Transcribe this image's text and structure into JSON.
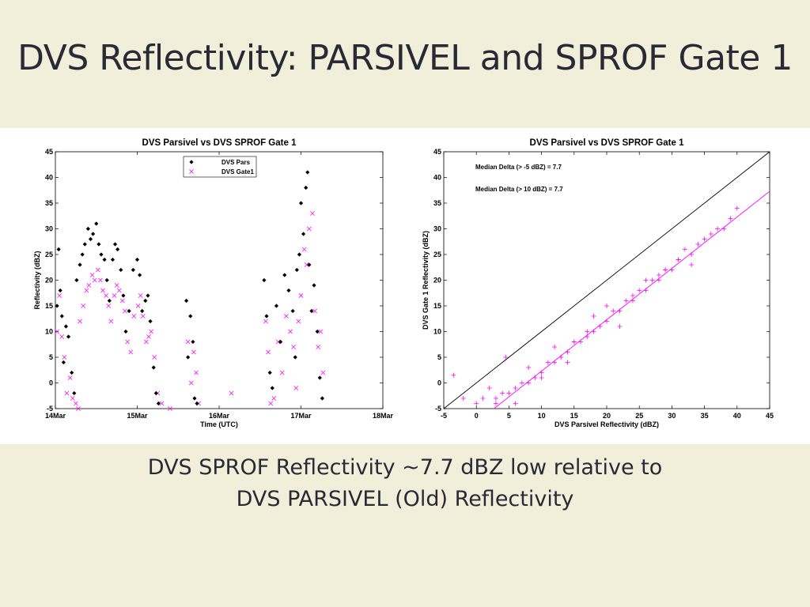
{
  "slide": {
    "title": "DVS Reflectivity: PARSIVEL and SPROF Gate 1",
    "caption_line1": "DVS SPROF Reflectivity ~7.7 dBZ low relative to",
    "caption_line2": "DVS PARSIVEL (Old) Reflectivity"
  },
  "colors": {
    "background": "#f1efda",
    "pars": "#000000",
    "gate1": "#ff00ff"
  },
  "chart_data": [
    {
      "type": "scatter",
      "title": "DVS Parsivel vs DVS SPROF Gate 1",
      "xlabel": "Time (UTC)",
      "ylabel": "Reflectivity (dBZ)",
      "xlim": [
        0,
        4
      ],
      "ylim": [
        -5,
        45
      ],
      "x_tick_values": [
        0,
        1,
        2,
        3,
        4
      ],
      "x_tick_labels": [
        "14Mar",
        "15Mar",
        "16Mar",
        "17Mar",
        "18Mar"
      ],
      "y_ticks": [
        -5,
        0,
        5,
        10,
        15,
        20,
        25,
        30,
        35,
        40,
        45
      ],
      "legend": [
        "DVS Pars",
        "DVS Gate1"
      ],
      "legend_position": "top-center",
      "series": [
        {
          "name": "DVS Pars",
          "marker": "diamond",
          "x": [
            0.02,
            0.04,
            0.06,
            0.08,
            0.1,
            0.13,
            0.16,
            0.2,
            0.23,
            0.26,
            0.3,
            0.33,
            0.36,
            0.4,
            0.43,
            0.46,
            0.5,
            0.53,
            0.56,
            0.6,
            0.63,
            0.66,
            0.7,
            0.73,
            0.76,
            0.8,
            0.83,
            0.86,
            0.9,
            0.95,
            1.0,
            1.03,
            1.06,
            1.1,
            1.13,
            1.16,
            1.2,
            1.23,
            1.26,
            1.6,
            1.62,
            1.65,
            1.68,
            1.7,
            1.73,
            2.55,
            2.58,
            2.62,
            2.65,
            2.7,
            2.75,
            2.8,
            2.85,
            2.9,
            2.93,
            2.95,
            2.98,
            3.0,
            3.03,
            3.06,
            3.08,
            3.1,
            3.13,
            3.16,
            3.2,
            3.23,
            3.26
          ],
          "y": [
            15,
            26,
            18,
            13,
            4,
            11,
            9,
            2,
            -2,
            20,
            23,
            25,
            27,
            30,
            28,
            29,
            31,
            27,
            25,
            24,
            20,
            16,
            24,
            27,
            26,
            22,
            17,
            10,
            14,
            22,
            24,
            21,
            14,
            16,
            17,
            12,
            3,
            -2,
            -4,
            16,
            5,
            13,
            8,
            -3,
            -4,
            20,
            13,
            2,
            -1,
            15,
            8,
            21,
            18,
            14,
            5,
            22,
            25,
            35,
            29,
            38,
            41,
            23,
            14,
            19,
            10,
            1,
            -3
          ]
        },
        {
          "name": "DVS Gate1",
          "marker": "x",
          "x": [
            0.02,
            0.05,
            0.08,
            0.11,
            0.14,
            0.18,
            0.21,
            0.25,
            0.28,
            0.3,
            0.34,
            0.38,
            0.41,
            0.45,
            0.48,
            0.52,
            0.55,
            0.58,
            0.62,
            0.65,
            0.68,
            0.72,
            0.75,
            0.78,
            0.82,
            0.85,
            0.88,
            0.92,
            0.96,
            1.01,
            1.04,
            1.07,
            1.11,
            1.14,
            1.17,
            1.21,
            1.25,
            1.3,
            1.4,
            1.62,
            1.66,
            1.69,
            1.72,
            1.75,
            2.15,
            2.57,
            2.6,
            2.63,
            2.67,
            2.72,
            2.77,
            2.82,
            2.87,
            2.91,
            2.94,
            2.97,
            3.0,
            3.04,
            3.07,
            3.1,
            3.14,
            3.17,
            3.21,
            3.24,
            3.27
          ],
          "y": [
            10,
            17,
            9,
            5,
            -2,
            1,
            -3,
            -4,
            -5,
            12,
            15,
            18,
            19,
            21,
            20,
            22,
            20,
            18,
            17,
            15,
            12,
            17,
            19,
            18,
            16,
            14,
            8,
            6,
            13,
            15,
            17,
            13,
            8,
            9,
            10,
            5,
            -2,
            -4,
            -5,
            8,
            0,
            6,
            2,
            -4,
            -2,
            12,
            6,
            -4,
            -3,
            8,
            2,
            13,
            10,
            7,
            -1,
            12,
            17,
            26,
            23,
            30,
            33,
            14,
            7,
            10,
            2
          ]
        }
      ]
    },
    {
      "type": "scatter",
      "title": "DVS Parsivel vs DVS SPROF Gate 1",
      "xlabel": "DVS Parsivel Reflectivity (dBZ)",
      "ylabel": "DVS Gate 1 Reflectivity (dBZ)",
      "xlim": [
        -5,
        45
      ],
      "ylim": [
        -5,
        45
      ],
      "x_ticks": [
        -5,
        0,
        5,
        10,
        15,
        20,
        25,
        30,
        35,
        40,
        45
      ],
      "y_ticks": [
        -5,
        0,
        5,
        10,
        15,
        20,
        25,
        30,
        35,
        40,
        45
      ],
      "annotations": [
        "Median Delta (> -5 dBZ) = 7.7",
        "Median Delta (> 10 dBZ) = 7.7"
      ],
      "reference_line": {
        "slope": 1,
        "intercept": 0,
        "color": "#000000"
      },
      "fit_line": {
        "slope": 1,
        "intercept": -7.7,
        "color": "#ff00ff"
      },
      "series": [
        {
          "name": "",
          "marker": "plus",
          "x": [
            -3.5,
            -2,
            0,
            1,
            2,
            3,
            4,
            5,
            6,
            7,
            8,
            9,
            10,
            11,
            12,
            13,
            14,
            15,
            16,
            17,
            18,
            19,
            20,
            21,
            22,
            23,
            24,
            25,
            26,
            27,
            28,
            29,
            30,
            31,
            32,
            33,
            34,
            35,
            36,
            37,
            38,
            39,
            40,
            4.5,
            8,
            12,
            15,
            18,
            22,
            26,
            29,
            33,
            3,
            6,
            10,
            14,
            17,
            20,
            24,
            28,
            31
          ],
          "y": [
            1.5,
            -3,
            -4,
            -3,
            -1,
            -4,
            -2,
            -2,
            -1,
            0,
            0,
            1,
            2,
            4,
            4,
            5,
            6,
            8,
            8,
            9,
            10,
            11,
            12,
            14,
            14,
            16,
            17,
            18,
            18,
            20,
            20,
            22,
            22,
            24,
            26,
            25,
            27,
            28,
            29,
            30,
            30,
            32,
            34,
            5,
            3,
            7,
            8,
            13,
            11,
            20,
            22,
            23,
            -3,
            -4,
            1,
            4,
            10,
            15,
            16,
            21,
            24
          ]
        }
      ]
    }
  ]
}
